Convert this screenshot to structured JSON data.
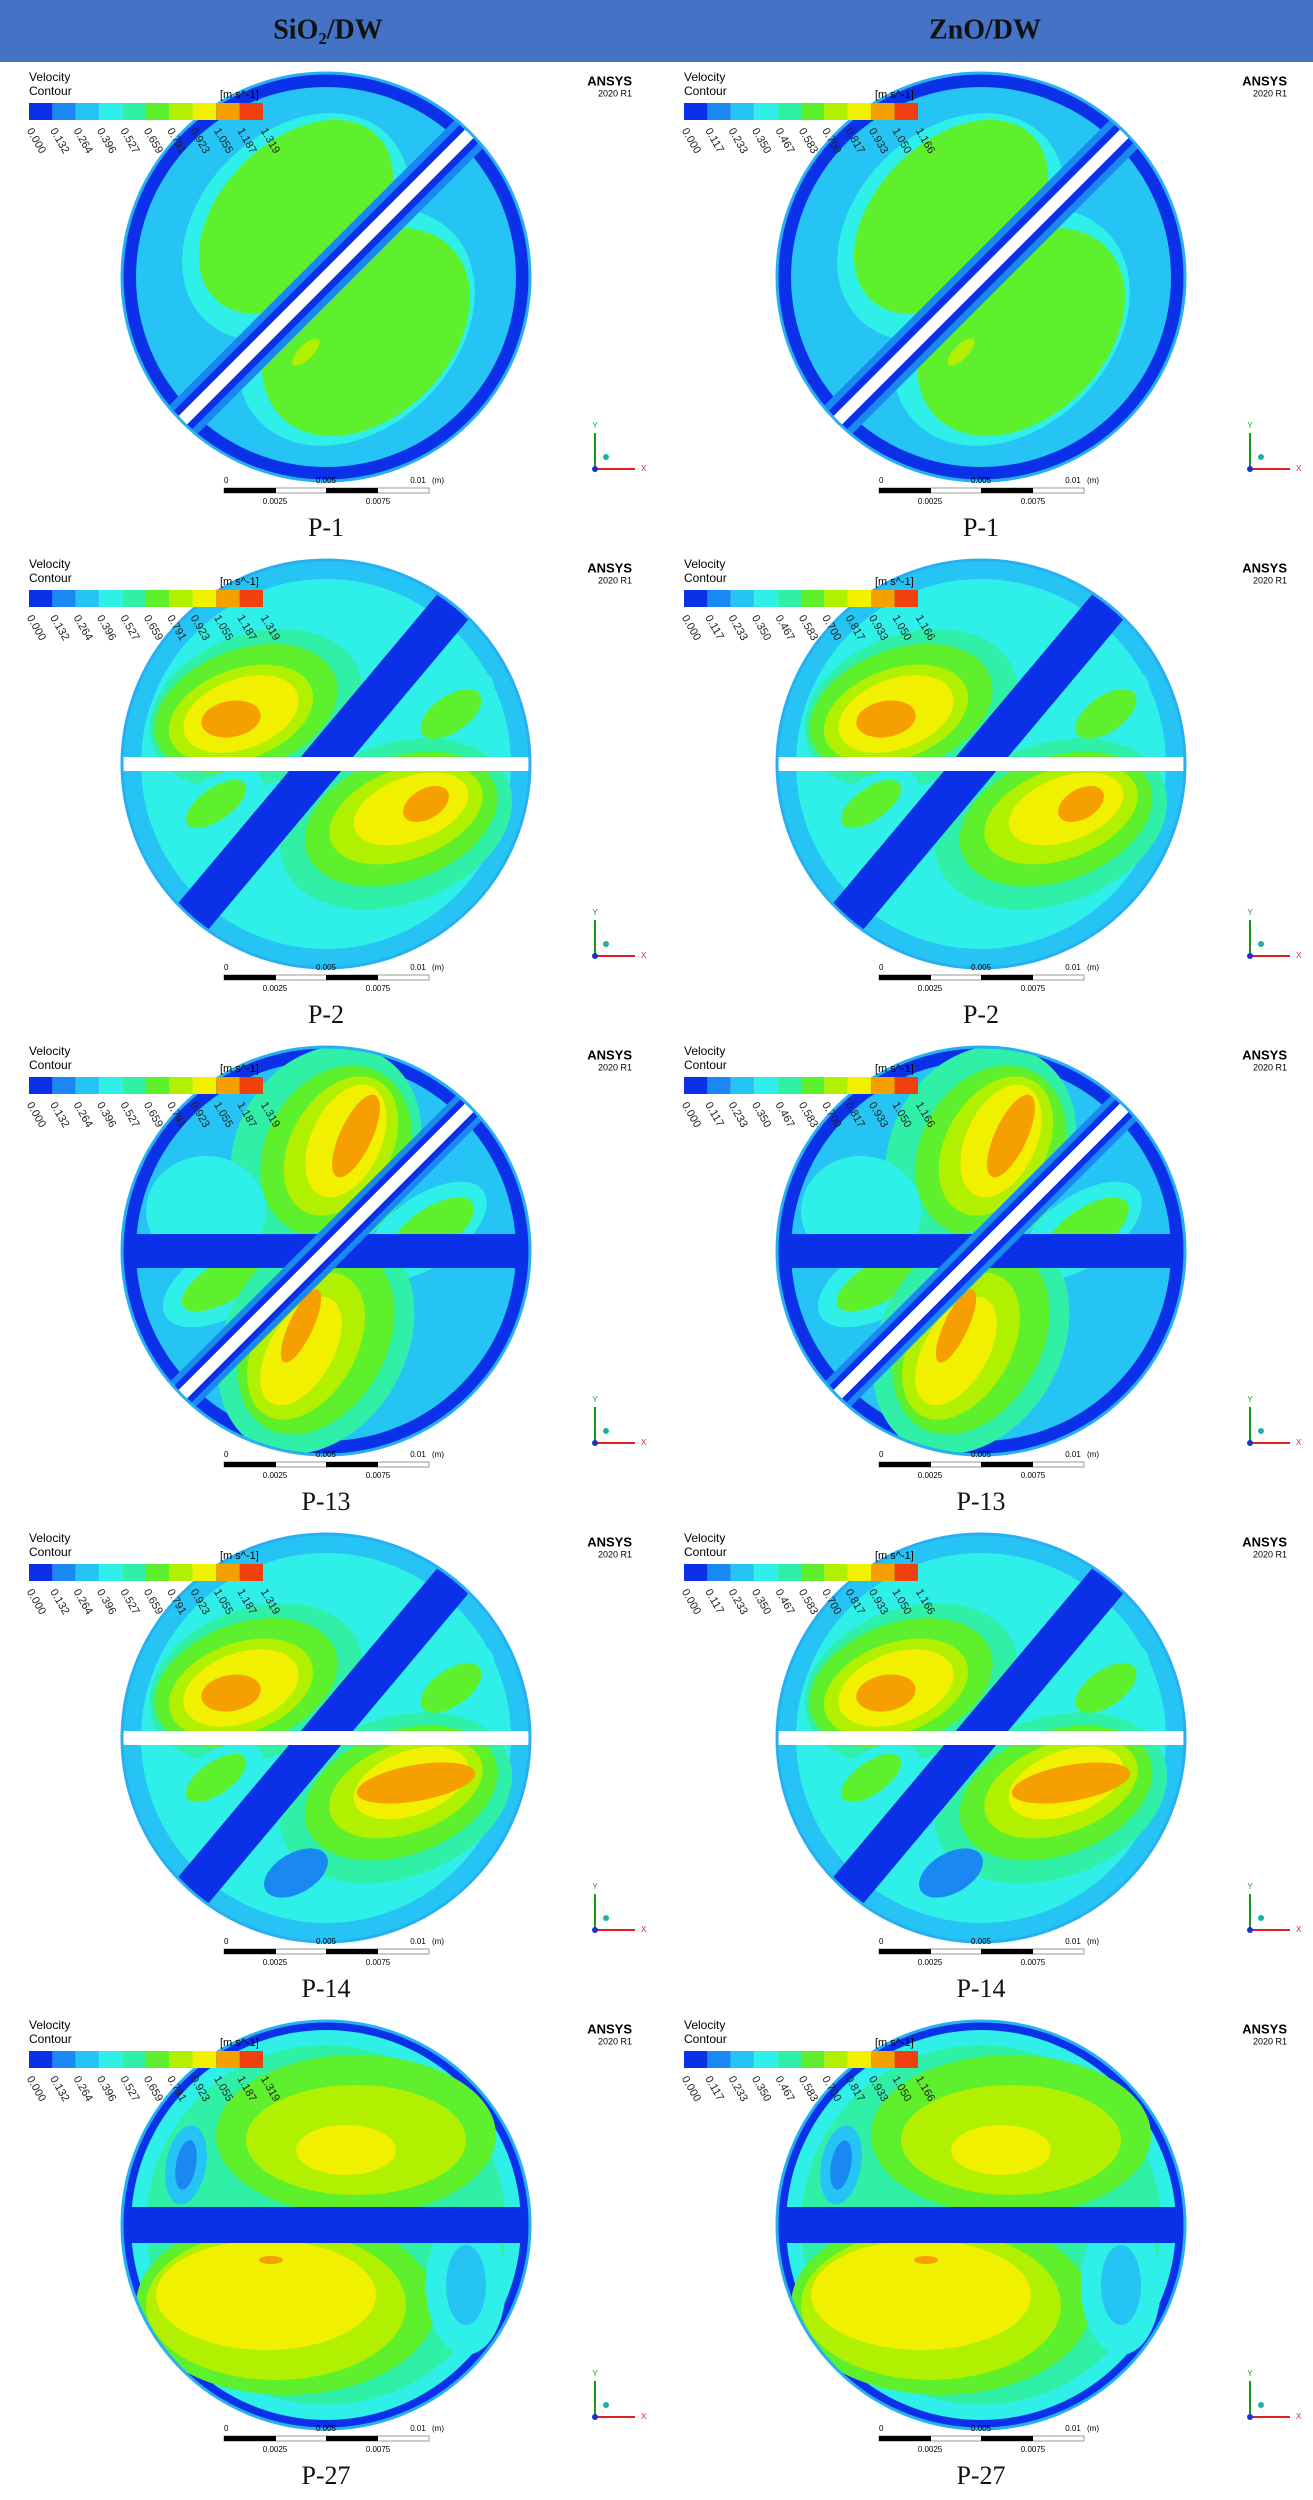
{
  "header": {
    "columns": [
      "SiO₂/DW",
      "ZnO/DW"
    ]
  },
  "legend": {
    "title": "Velocity",
    "subtitle": "Contour",
    "unit": "[m s^-1]"
  },
  "branding": {
    "name": "ANSYS",
    "version": "2020 R1"
  },
  "scale_bar": {
    "top": [
      "0",
      "0.005",
      "0.01",
      "(m)"
    ],
    "bottom": [
      "0.0025",
      "0.0075"
    ]
  },
  "axes": {
    "x": "X",
    "y": "Y"
  },
  "columns": [
    {
      "ticks": [
        "0.000",
        "0.132",
        "0.264",
        "0.396",
        "0.527",
        "0.659",
        "0.791",
        "0.923",
        "1.055",
        "1.187",
        "1.319"
      ]
    },
    {
      "ticks": [
        "0.000",
        "0.117",
        "0.233",
        "0.350",
        "0.467",
        "0.583",
        "0.700",
        "0.817",
        "0.933",
        "1.050",
        "1.166"
      ]
    }
  ],
  "rows": [
    {
      "caption": "P-1"
    },
    {
      "caption": "P-2"
    },
    {
      "caption": "P-13"
    },
    {
      "caption": "P-14"
    },
    {
      "caption": "P-27"
    }
  ]
}
